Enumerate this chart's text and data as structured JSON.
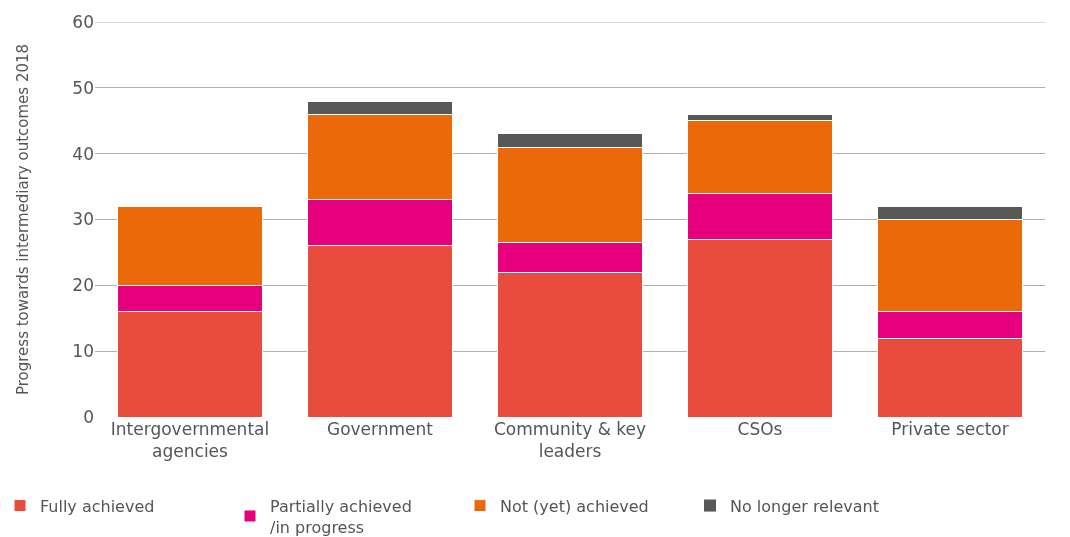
{
  "chart_data": {
    "type": "bar",
    "stacked": true,
    "ylabel": "Progress towards intermediary outcomes 2018",
    "categories": [
      "Intergovernmental\nagencies",
      "Government",
      "Community & key\nleaders",
      "CSOs",
      "Private sector"
    ],
    "series": [
      {
        "name": "Fully achieved",
        "color": "#e84c3d",
        "values": [
          16,
          26,
          22,
          27,
          12
        ]
      },
      {
        "name": "Partially achieved\n/in progress",
        "color": "#e6007e",
        "values": [
          4,
          7,
          4.5,
          7,
          4
        ]
      },
      {
        "name": "Not (yet) achieved",
        "color": "#eb6909",
        "values": [
          12,
          13,
          14.5,
          11,
          14
        ]
      },
      {
        "name": "No longer relevant",
        "color": "#575756",
        "values": [
          0,
          2,
          2,
          1,
          2
        ]
      }
    ],
    "ylim": [
      0,
      60
    ],
    "yticks": [
      0,
      10,
      20,
      30,
      40,
      50,
      60
    ],
    "grid": "y",
    "legend": "bottom"
  }
}
